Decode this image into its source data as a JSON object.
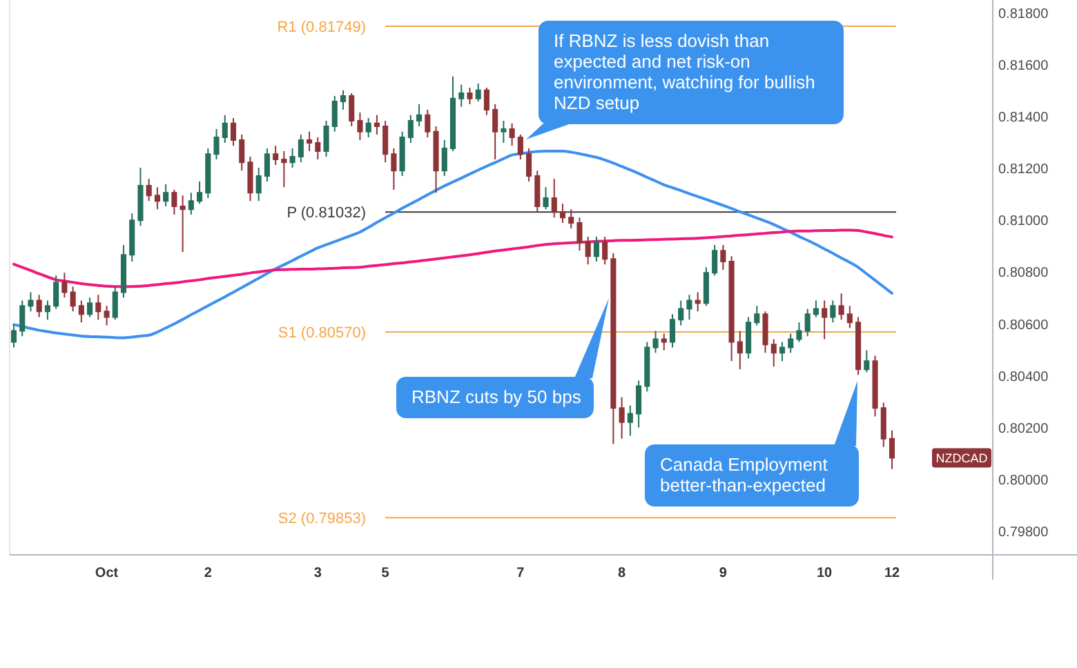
{
  "chart_data": {
    "type": "candlestick",
    "categories": [
      null,
      null,
      null,
      null,
      null,
      null,
      null,
      null,
      null,
      null,
      null,
      "Oct",
      null,
      null,
      null,
      null,
      null,
      null,
      null,
      null,
      null,
      null,
      null,
      "2",
      null,
      null,
      null,
      null,
      null,
      null,
      null,
      null,
      null,
      null,
      null,
      null,
      "3",
      null,
      null,
      null,
      null,
      null,
      null,
      null,
      "5",
      null,
      null,
      null,
      null,
      null,
      null,
      null,
      null,
      null,
      null,
      null,
      null,
      null,
      null,
      null,
      "7",
      null,
      null,
      null,
      null,
      null,
      null,
      null,
      null,
      null,
      null,
      null,
      "8",
      null,
      null,
      null,
      null,
      null,
      null,
      null,
      null,
      null,
      null,
      null,
      "9",
      null,
      null,
      null,
      null,
      null,
      null,
      null,
      null,
      null,
      null,
      null,
      "10",
      null,
      null,
      null,
      null,
      null,
      null,
      null,
      "12"
    ],
    "ylim": [
      0.7971,
      0.8185
    ],
    "yticks": [
      {
        "value": 0.798,
        "label": "0.79800"
      },
      {
        "value": 0.8,
        "label": "0.80000"
      },
      {
        "value": 0.802,
        "label": "0.80200"
      },
      {
        "value": 0.804,
        "label": "0.80400"
      },
      {
        "value": 0.806,
        "label": "0.80600"
      },
      {
        "value": 0.808,
        "label": "0.80800"
      },
      {
        "value": 0.81,
        "label": "0.81000"
      },
      {
        "value": 0.812,
        "label": "0.81200"
      },
      {
        "value": 0.814,
        "label": "0.81400"
      },
      {
        "value": 0.816,
        "label": "0.81600"
      },
      {
        "value": 0.818,
        "label": "0.81800"
      }
    ],
    "series": [
      {
        "name": "NZDCAD",
        "ohlc": [
          [
            0.80531,
            0.80595,
            0.8051,
            0.80574
          ],
          [
            0.80574,
            0.80691,
            0.80553,
            0.8067
          ],
          [
            0.8067,
            0.80723,
            0.80649,
            0.80691
          ],
          [
            0.80691,
            0.80713,
            0.80627,
            0.80649
          ],
          [
            0.80649,
            0.80691,
            0.80617,
            0.8067
          ],
          [
            0.8067,
            0.80787,
            0.80659,
            0.80761
          ],
          [
            0.80761,
            0.80798,
            0.80702,
            0.80723
          ],
          [
            0.80723,
            0.80745,
            0.80649,
            0.8067
          ],
          [
            0.8067,
            0.80691,
            0.80606,
            0.80638
          ],
          [
            0.80638,
            0.80702,
            0.80627,
            0.80681
          ],
          [
            0.80681,
            0.80713,
            0.80617,
            0.80649
          ],
          [
            0.80649,
            0.8067,
            0.80595,
            0.80627
          ],
          [
            0.80627,
            0.80745,
            0.80617,
            0.80723
          ],
          [
            0.80723,
            0.80905,
            0.80702,
            0.80867
          ],
          [
            0.80867,
            0.81027,
            0.80841,
            0.81
          ],
          [
            0.81,
            0.81203,
            0.80979,
            0.81134
          ],
          [
            0.81134,
            0.8116,
            0.81075,
            0.81096
          ],
          [
            0.81096,
            0.81128,
            0.81043,
            0.81075
          ],
          [
            0.81075,
            0.81139,
            0.81054,
            0.81107
          ],
          [
            0.81107,
            0.81118,
            0.81022,
            0.81054
          ],
          [
            0.81054,
            0.81096,
            0.80878,
            0.81043
          ],
          [
            0.81043,
            0.81107,
            0.81022,
            0.81075
          ],
          [
            0.81075,
            0.8115,
            0.81064,
            0.81107
          ],
          [
            0.81107,
            0.81278,
            0.81086,
            0.81256
          ],
          [
            0.81256,
            0.81352,
            0.81235,
            0.8132
          ],
          [
            0.8132,
            0.81406,
            0.81299,
            0.81374
          ],
          [
            0.81374,
            0.81395,
            0.81288,
            0.8131
          ],
          [
            0.8131,
            0.81331,
            0.81192,
            0.81224
          ],
          [
            0.81224,
            0.81246,
            0.81075,
            0.81107
          ],
          [
            0.81107,
            0.81203,
            0.81075,
            0.81171
          ],
          [
            0.81171,
            0.81278,
            0.8115,
            0.81256
          ],
          [
            0.81256,
            0.81288,
            0.81214,
            0.81235
          ],
          [
            0.81235,
            0.81267,
            0.81128,
            0.81224
          ],
          [
            0.81224,
            0.81278,
            0.81203,
            0.81246
          ],
          [
            0.81246,
            0.81331,
            0.81224,
            0.8131
          ],
          [
            0.8131,
            0.81342,
            0.81267,
            0.81299
          ],
          [
            0.81299,
            0.8132,
            0.81235,
            0.81267
          ],
          [
            0.81267,
            0.81384,
            0.81246,
            0.81363
          ],
          [
            0.81363,
            0.8148,
            0.81342,
            0.81459
          ],
          [
            0.81459,
            0.81502,
            0.81427,
            0.8148
          ],
          [
            0.8148,
            0.81491,
            0.81363,
            0.81384
          ],
          [
            0.81384,
            0.81416,
            0.8131,
            0.81342
          ],
          [
            0.81342,
            0.81395,
            0.8132,
            0.81374
          ],
          [
            0.81374,
            0.81406,
            0.81331,
            0.81363
          ],
          [
            0.81363,
            0.81384,
            0.81224,
            0.81256
          ],
          [
            0.81256,
            0.81278,
            0.81118,
            0.81192
          ],
          [
            0.81192,
            0.81342,
            0.81171,
            0.8132
          ],
          [
            0.8132,
            0.81406,
            0.81299,
            0.81384
          ],
          [
            0.81384,
            0.81448,
            0.81363,
            0.81406
          ],
          [
            0.81406,
            0.81427,
            0.8132,
            0.81342
          ],
          [
            0.81342,
            0.81363,
            0.81107,
            0.81192
          ],
          [
            0.81192,
            0.8131,
            0.81171,
            0.81278
          ],
          [
            0.81278,
            0.81555,
            0.81267,
            0.8147
          ],
          [
            0.8147,
            0.81523,
            0.81438,
            0.81491
          ],
          [
            0.81491,
            0.81512,
            0.81448,
            0.8147
          ],
          [
            0.8147,
            0.81528,
            0.81459,
            0.81502
          ],
          [
            0.81502,
            0.81512,
            0.81406,
            0.81427
          ],
          [
            0.81427,
            0.81448,
            0.81235,
            0.81342
          ],
          [
            0.81342,
            0.81384,
            0.81299,
            0.81352
          ],
          [
            0.81352,
            0.81374,
            0.81288,
            0.8132
          ],
          [
            0.8132,
            0.81331,
            0.81235,
            0.81256
          ],
          [
            0.81256,
            0.81278,
            0.8115,
            0.81171
          ],
          [
            0.81171,
            0.81192,
            0.81032,
            0.81054
          ],
          [
            0.81054,
            0.81128,
            0.81043,
            0.81086
          ],
          [
            0.81086,
            0.8116,
            0.81011,
            0.81032
          ],
          [
            0.81032,
            0.81064,
            0.8099,
            0.81011
          ],
          [
            0.81011,
            0.81043,
            0.80969,
            0.8099
          ],
          [
            0.8099,
            0.81011,
            0.80883,
            0.80915
          ],
          [
            0.80915,
            0.80937,
            0.8083,
            0.80862
          ],
          [
            0.80862,
            0.80937,
            0.80841,
            0.80915
          ],
          [
            0.80915,
            0.80937,
            0.8083,
            0.80851
          ],
          [
            0.80851,
            0.80873,
            0.80137,
            0.80276
          ],
          [
            0.80276,
            0.80318,
            0.80158,
            0.80222
          ],
          [
            0.80222,
            0.80286,
            0.80169,
            0.80254
          ],
          [
            0.80254,
            0.80382,
            0.80201,
            0.80361
          ],
          [
            0.80361,
            0.80531,
            0.8034,
            0.8051
          ],
          [
            0.8051,
            0.80574,
            0.80489,
            0.80542
          ],
          [
            0.80542,
            0.80563,
            0.80499,
            0.80531
          ],
          [
            0.80531,
            0.80638,
            0.8051,
            0.80617
          ],
          [
            0.80617,
            0.80691,
            0.80595,
            0.80659
          ],
          [
            0.80659,
            0.80713,
            0.80617,
            0.80691
          ],
          [
            0.80691,
            0.80723,
            0.80649,
            0.80681
          ],
          [
            0.80681,
            0.80819,
            0.8067,
            0.80798
          ],
          [
            0.80798,
            0.80905,
            0.80787,
            0.80883
          ],
          [
            0.80883,
            0.80905,
            0.80809,
            0.80841
          ],
          [
            0.80841,
            0.80862,
            0.80457,
            0.80531
          ],
          [
            0.80531,
            0.80574,
            0.80425,
            0.80489
          ],
          [
            0.80489,
            0.80627,
            0.80467,
            0.80606
          ],
          [
            0.80606,
            0.8067,
            0.80595,
            0.80638
          ],
          [
            0.80638,
            0.80649,
            0.80489,
            0.80521
          ],
          [
            0.80521,
            0.80542,
            0.80436,
            0.80489
          ],
          [
            0.80489,
            0.80531,
            0.80457,
            0.8051
          ],
          [
            0.8051,
            0.80563,
            0.80489,
            0.80542
          ],
          [
            0.80542,
            0.80606,
            0.80531,
            0.80574
          ],
          [
            0.80574,
            0.80659,
            0.80553,
            0.80638
          ],
          [
            0.80638,
            0.80691,
            0.80627,
            0.80659
          ],
          [
            0.80659,
            0.80691,
            0.80542,
            0.80627
          ],
          [
            0.80627,
            0.80691,
            0.80606,
            0.8067
          ],
          [
            0.8067,
            0.80718,
            0.80617,
            0.80638
          ],
          [
            0.80638,
            0.8067,
            0.80585,
            0.80606
          ],
          [
            0.80606,
            0.80627,
            0.80404,
            0.80425
          ],
          [
            0.80425,
            0.80499,
            0.80414,
            0.80457
          ],
          [
            0.80457,
            0.80478,
            0.80244,
            0.80276
          ],
          [
            0.80276,
            0.80297,
            0.80126,
            0.80158
          ],
          [
            0.80158,
            0.8019,
            0.80041,
            0.80084
          ]
        ],
        "colors": [
          "#26705d",
          "#26705d",
          "#26705d",
          "#8e3438",
          "#26705d",
          "#26705d",
          "#8e3438",
          "#8e3438",
          "#8e3438",
          "#26705d",
          "#8e3438",
          "#8e3438",
          "#26705d",
          "#26705d",
          "#26705d",
          "#26705d",
          "#8e3438",
          "#8e3438",
          "#26705d",
          "#8e3438",
          "#8e3438",
          "#26705d",
          "#26705d",
          "#26705d",
          "#26705d",
          "#26705d",
          "#8e3438",
          "#8e3438",
          "#8e3438",
          "#26705d",
          "#26705d",
          "#8e3438",
          "#8e3438",
          "#26705d",
          "#26705d",
          "#8e3438",
          "#8e3438",
          "#26705d",
          "#26705d",
          "#26705d",
          "#8e3438",
          "#8e3438",
          "#26705d",
          "#8e3438",
          "#8e3438",
          "#8e3438",
          "#26705d",
          "#26705d",
          "#26705d",
          "#8e3438",
          "#8e3438",
          "#26705d",
          "#26705d",
          "#26705d",
          "#8e3438",
          "#26705d",
          "#8e3438",
          "#8e3438",
          "#26705d",
          "#8e3438",
          "#8e3438",
          "#8e3438",
          "#8e3438",
          "#26705d",
          "#8e3438",
          "#8e3438",
          "#8e3438",
          "#8e3438",
          "#8e3438",
          "#26705d",
          "#8e3438",
          "#8e3438",
          "#8e3438",
          "#26705d",
          "#26705d",
          "#26705d",
          "#26705d",
          "#8e3438",
          "#26705d",
          "#26705d",
          "#26705d",
          "#8e3438",
          "#26705d",
          "#26705d",
          "#8e3438",
          "#8e3438",
          "#8e3438",
          "#26705d",
          "#26705d",
          "#8e3438",
          "#8e3438",
          "#26705d",
          "#26705d",
          "#26705d",
          "#26705d",
          "#26705d",
          "#8e3438",
          "#26705d",
          "#8e3438",
          "#8e3438",
          "#8e3438",
          "#26705d",
          "#8e3438",
          "#8e3438",
          "#8e3438"
        ]
      },
      {
        "type": "line",
        "color": "#3d90ee",
        "values": [
          0.80598,
          0.80591,
          0.80583,
          0.80576,
          0.80571,
          0.80566,
          0.80562,
          0.80558,
          0.80554,
          0.80552,
          0.80551,
          0.8055,
          0.80548,
          0.80547,
          0.8055,
          0.80554,
          0.80557,
          0.80569,
          0.80585,
          0.80601,
          0.80618,
          0.80636,
          0.80653,
          0.80671,
          0.80688,
          0.80705,
          0.80723,
          0.80741,
          0.80759,
          0.80777,
          0.80795,
          0.80813,
          0.80829,
          0.80845,
          0.80862,
          0.80878,
          0.80894,
          0.80906,
          0.80918,
          0.8093,
          0.80942,
          0.80955,
          0.80973,
          0.80992,
          0.8101,
          0.81028,
          0.81047,
          0.81064,
          0.81081,
          0.81099,
          0.81116,
          0.81133,
          0.81148,
          0.81163,
          0.81179,
          0.81194,
          0.81209,
          0.81223,
          0.81238,
          0.81252,
          0.81257,
          0.81262,
          0.81266,
          0.81267,
          0.81267,
          0.81267,
          0.81263,
          0.81257,
          0.8125,
          0.81243,
          0.81233,
          0.81221,
          0.81208,
          0.81195,
          0.81181,
          0.81166,
          0.81152,
          0.81137,
          0.81126,
          0.81115,
          0.81103,
          0.81092,
          0.81081,
          0.81069,
          0.81058,
          0.81046,
          0.81033,
          0.81021,
          0.81009,
          0.80997,
          0.80984,
          0.80969,
          0.80954,
          0.80938,
          0.80923,
          0.80907,
          0.8089,
          0.80873,
          0.80855,
          0.80838,
          0.80819,
          0.80794,
          0.80769,
          0.80744,
          0.80719
        ]
      },
      {
        "type": "line",
        "color": "#f0187f",
        "values": [
          0.80831,
          0.80819,
          0.80807,
          0.80794,
          0.80782,
          0.80771,
          0.80766,
          0.80761,
          0.80756,
          0.80752,
          0.80749,
          0.80746,
          0.80745,
          0.80745,
          0.80745,
          0.80746,
          0.80749,
          0.80752,
          0.80756,
          0.80759,
          0.80763,
          0.80767,
          0.80771,
          0.80776,
          0.8078,
          0.80784,
          0.80788,
          0.80792,
          0.80797,
          0.80801,
          0.80805,
          0.80809,
          0.8081,
          0.80811,
          0.80812,
          0.80812,
          0.80813,
          0.80814,
          0.80815,
          0.80817,
          0.80818,
          0.80819,
          0.80823,
          0.80826,
          0.80829,
          0.80833,
          0.80836,
          0.8084,
          0.80843,
          0.80847,
          0.80851,
          0.80855,
          0.80859,
          0.80863,
          0.80867,
          0.80872,
          0.80877,
          0.80882,
          0.80886,
          0.8089,
          0.80894,
          0.80898,
          0.80903,
          0.80907,
          0.8091,
          0.80912,
          0.80914,
          0.80915,
          0.80917,
          0.80919,
          0.8092,
          0.80922,
          0.80923,
          0.80923,
          0.80924,
          0.80925,
          0.80926,
          0.80927,
          0.80928,
          0.80929,
          0.8093,
          0.80931,
          0.80933,
          0.80935,
          0.80938,
          0.8094,
          0.80943,
          0.80945,
          0.80948,
          0.8095,
          0.80953,
          0.80955,
          0.80958,
          0.80959,
          0.80959,
          0.8096,
          0.80961,
          0.80961,
          0.80962,
          0.80962,
          0.80961,
          0.80955,
          0.80949,
          0.80942,
          0.80936
        ]
      }
    ],
    "ref_lines": [
      {
        "axis": "y",
        "value": 0.81749,
        "label": "R1 (0.81749)",
        "color": "#f7a646"
      },
      {
        "axis": "y",
        "value": 0.81032,
        "label": "P (0.81032)",
        "color": "#3a3a3a"
      },
      {
        "axis": "y",
        "value": 0.8057,
        "label": "S1 (0.80570)",
        "color": "#f7a646"
      },
      {
        "axis": "y",
        "value": 0.79853,
        "label": "S2 (0.79853)",
        "color": "#f7a646"
      }
    ],
    "annotations": [
      "If RBNZ is less dovish than expected and net risk-on environment, watching for bullish NZD setup",
      "RBNZ cuts by 50 bps",
      "Canada Employment better-than-expected"
    ]
  }
}
